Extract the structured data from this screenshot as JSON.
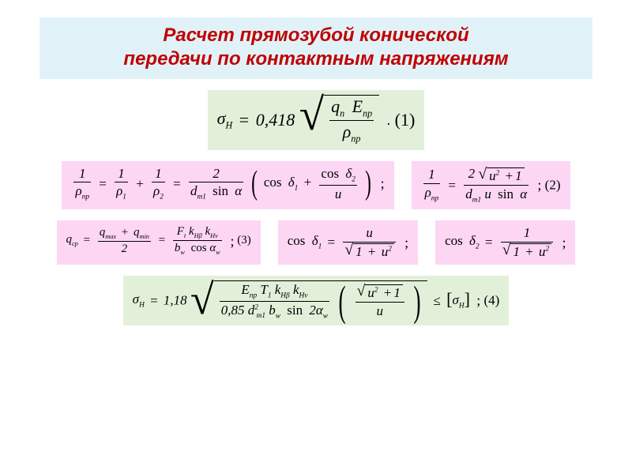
{
  "colors": {
    "title_bg": "#e0f2f8",
    "title_fg": "#c00000",
    "green_bg": "#e2f0d9",
    "pink_bg": "#fdd6f4",
    "text": "#000000",
    "page_bg": "#ffffff"
  },
  "title": {
    "line1": "Расчет прямозубой конической",
    "line2": "передачи по контактным напряжениям"
  },
  "eq1": {
    "lhs_sym": "σ",
    "lhs_sub": "H",
    "coef": "0,418",
    "num_q": "q",
    "num_q_sub": "n",
    "num_E": "E",
    "num_E_sub": "пр",
    "den_rho": "ρ",
    "den_rho_sub": "пр",
    "punct": ".",
    "num": "(1)"
  },
  "eq_rho": {
    "lhs": "1",
    "lhs_den_sym": "ρ",
    "lhs_den_sub": "пр",
    "r1_num": "1",
    "r1_den_sym": "ρ",
    "r1_den_sub": "1",
    "r2_num": "1",
    "r2_den_sym": "ρ",
    "r2_den_sub": "2",
    "rhs_num": "2",
    "rhs_den_d": "d",
    "rhs_den_d_sub": "m1",
    "rhs_den_sin": "sin",
    "rhs_den_alpha": "α",
    "cos": "cos",
    "d1": "δ",
    "d1_sub": "1",
    "d2": "δ",
    "d2_sub": "2",
    "u": "u",
    "punct": ";"
  },
  "eq2": {
    "lhs_num": "1",
    "lhs_den_sym": "ρ",
    "lhs_den_sub": "пр",
    "rhs_num_2": "2",
    "rhs_num_u": "u",
    "rhs_num_sq": "2",
    "rhs_num_plus1": "1",
    "rhs_den_d": "d",
    "rhs_den_d_sub": "m1",
    "rhs_den_u": "u",
    "rhs_den_sin": "sin",
    "rhs_den_alpha": "α",
    "punct": ";",
    "num": "(2)"
  },
  "eq3": {
    "lhs_q": "q",
    "lhs_sub": "cp",
    "qmax": "q",
    "qmax_sub": "max",
    "qmin": "q",
    "qmin_sub": "min",
    "two": "2",
    "F": "F",
    "F_sub": "t",
    "k1": "k",
    "k1_sub": "Hβ",
    "k2": "k",
    "k2_sub": "Hv",
    "b": "b",
    "b_sub": "w",
    "cos": "cos",
    "aw": "α",
    "aw_sub": "w",
    "punct": ";",
    "num": "(3)"
  },
  "eq_cosd1": {
    "lhs_cos": "cos",
    "lhs_d": "δ",
    "lhs_sub": "1",
    "rhs_num": "u",
    "rhs_den_1": "1",
    "rhs_den_u": "u",
    "rhs_den_sq": "2",
    "punct": ";"
  },
  "eq_cosd2": {
    "lhs_cos": "cos",
    "lhs_d": "δ",
    "lhs_sub": "2",
    "rhs_num": "1",
    "rhs_den_1": "1",
    "rhs_den_u": "u",
    "rhs_den_sq": "2",
    "punct": ";"
  },
  "eq4": {
    "lhs_sym": "σ",
    "lhs_sub": "H",
    "coef": "1,18",
    "E": "E",
    "E_sub": "пр",
    "T": "T",
    "T_sub": "1",
    "k1": "k",
    "k1_sub": "Hβ",
    "k2": "k",
    "k2_sub": "Hv",
    "c085": "0,85",
    "d": "d",
    "d_sub": "m1",
    "d_sq": "2",
    "b": "b",
    "b_sub": "w",
    "sin": "sin",
    "two_a": "2",
    "aw": "α",
    "aw_sub": "w",
    "par_num_u": "u",
    "par_num_sq": "2",
    "par_num_plus1": "1",
    "par_den_u": "u",
    "leq": "≤",
    "rhs_sym": "σ",
    "rhs_sub": "H",
    "punct": ";",
    "num": "(4)"
  }
}
